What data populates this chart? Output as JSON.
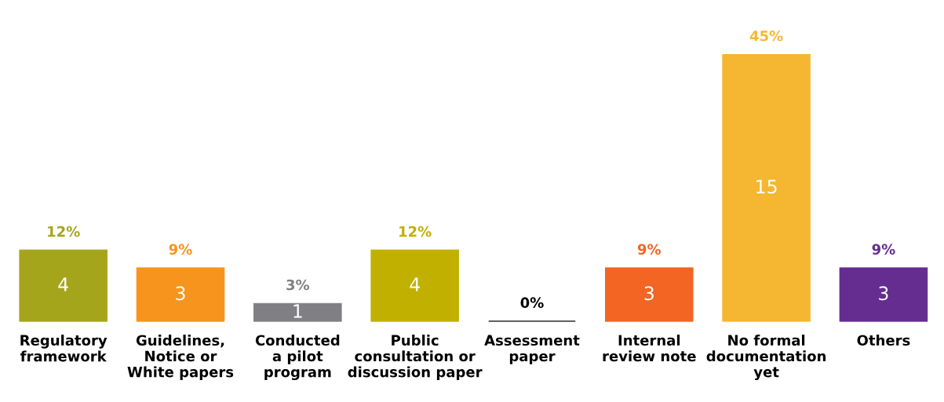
{
  "chart_data": {
    "type": "bar",
    "categories": [
      "Regulatory\nframework",
      "Guidelines,\nNotice or\nWhite papers",
      "Conducted\na pilot\nprogram",
      "Public\nconsultation or\ndiscussion paper",
      "Assessment\npaper",
      "Internal\nreview note",
      "No formal\ndocumentation\nyet",
      "Others"
    ],
    "values": [
      4,
      3,
      1,
      4,
      0,
      3,
      15,
      3
    ],
    "colors": [
      "#a5a51c",
      "#f7941d",
      "#808084",
      "#c2b000",
      "#000000",
      "#f26522",
      "#f5b731",
      "#662d91"
    ],
    "value_labels": [
      "4",
      "3",
      "1",
      "4",
      null,
      "3",
      "15",
      "3"
    ],
    "annotations": [
      {
        "text": "12%",
        "x": "Regulatory\nframework",
        "y": 4
      },
      {
        "text": "9%",
        "x": "Guidelines,\nNotice or\nWhite papers",
        "y": 3
      },
      {
        "text": "3%",
        "x": "Conducted\na pilot\nprogram",
        "y": 1
      },
      {
        "text": "12%",
        "x": "Public\nconsultation or\ndiscussion paper",
        "y": 4
      },
      {
        "text": "0%",
        "x": "Assessment\npaper",
        "y": 0
      },
      {
        "text": "9%",
        "x": "Internal\nreview note",
        "y": 3
      },
      {
        "text": "45%",
        "x": "No formal\ndocumentation\nyet",
        "y": 15
      },
      {
        "text": "9%",
        "x": "Others",
        "y": 3
      }
    ],
    "grid": false,
    "legend": false
  }
}
